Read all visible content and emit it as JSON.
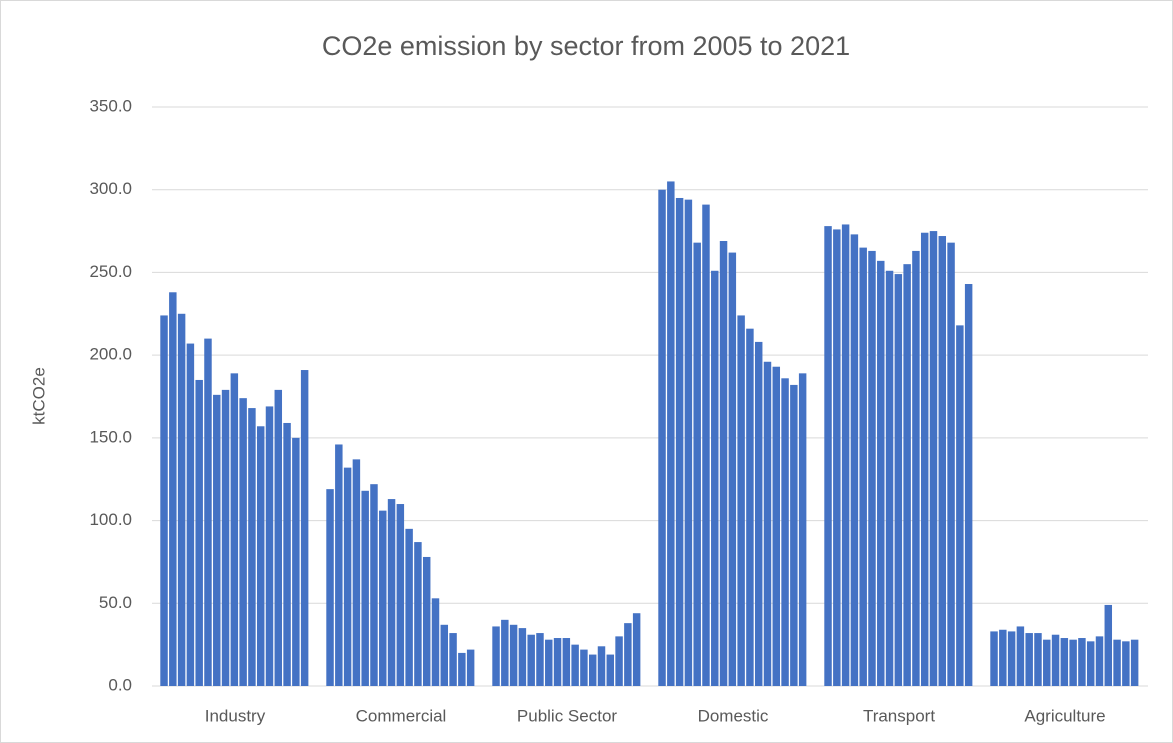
{
  "chart_data": {
    "type": "bar",
    "title": "CO2e emission by sector from 2005 to 2021",
    "y_label": "ktCO2e",
    "categories": [
      "Industry",
      "Commercial",
      "Public Sector",
      "Domestic",
      "Transport",
      "Agriculture"
    ],
    "color": "#4472c4",
    "series": [
      {
        "values": [
          224,
          119,
          36,
          300,
          278,
          33
        ]
      },
      {
        "values": [
          238,
          146,
          40,
          305,
          276,
          34
        ]
      },
      {
        "values": [
          225,
          132,
          37,
          295,
          279,
          33
        ]
      },
      {
        "values": [
          207,
          137,
          35,
          294,
          273,
          36
        ]
      },
      {
        "values": [
          185,
          118,
          31,
          268,
          265,
          32
        ]
      },
      {
        "values": [
          210,
          122,
          32,
          291,
          263,
          32
        ]
      },
      {
        "values": [
          176,
          106,
          28,
          251,
          257,
          28
        ]
      },
      {
        "values": [
          179,
          113,
          29,
          269,
          251,
          31
        ]
      },
      {
        "values": [
          189,
          110,
          29,
          262,
          249,
          29
        ]
      },
      {
        "values": [
          174,
          95,
          25,
          224,
          255,
          28
        ]
      },
      {
        "values": [
          168,
          87,
          22,
          216,
          263,
          29
        ]
      },
      {
        "values": [
          157,
          78,
          19,
          208,
          274,
          27
        ]
      },
      {
        "values": [
          169,
          53,
          24,
          196,
          275,
          30
        ]
      },
      {
        "values": [
          179,
          37,
          19,
          193,
          272,
          49
        ]
      },
      {
        "values": [
          159,
          32,
          30,
          186,
          268,
          28
        ]
      },
      {
        "values": [
          150,
          20,
          38,
          182,
          218,
          27
        ]
      },
      {
        "values": [
          191,
          22,
          44,
          189,
          243,
          28
        ]
      }
    ],
    "ylim": [
      0,
      350
    ],
    "yticks": [
      {
        "value": 0,
        "label": "0.0"
      },
      {
        "value": 50,
        "label": "50.0"
      },
      {
        "value": 100,
        "label": "100.0"
      },
      {
        "value": 150,
        "label": "150.0"
      },
      {
        "value": 200,
        "label": "200.0"
      },
      {
        "value": 250,
        "label": "250.0"
      },
      {
        "value": 300,
        "label": "300.0"
      },
      {
        "value": 350,
        "label": "350.0"
      }
    ],
    "grid": true
  }
}
